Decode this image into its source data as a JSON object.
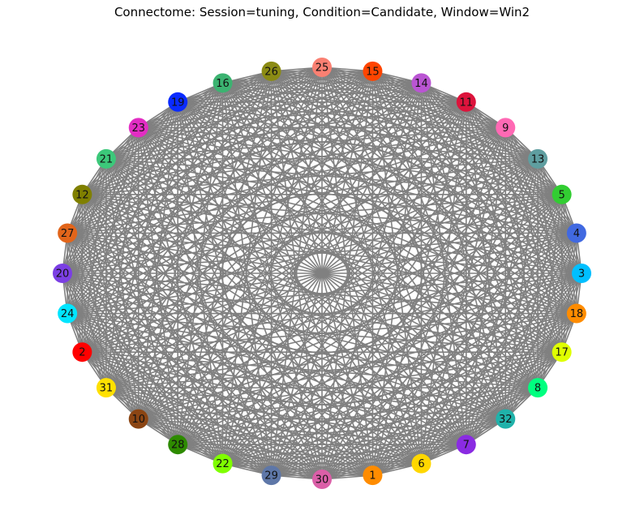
{
  "title": "Connectome: Session=tuning, Condition=Candidate, Window=Win2",
  "graph": {
    "edge_color": "#808080",
    "edges": "all-to-all",
    "nodes": [
      {
        "id": "25",
        "color": "#FA8072"
      },
      {
        "id": "15",
        "color": "#FF4500"
      },
      {
        "id": "14",
        "color": "#BA55D3"
      },
      {
        "id": "11",
        "color": "#DC143C"
      },
      {
        "id": "9",
        "color": "#FF69B4"
      },
      {
        "id": "13",
        "color": "#5F9EA0"
      },
      {
        "id": "5",
        "color": "#32CD32"
      },
      {
        "id": "4",
        "color": "#4169E1"
      },
      {
        "id": "3",
        "color": "#00BFFF"
      },
      {
        "id": "18",
        "color": "#FF8C00"
      },
      {
        "id": "17",
        "color": "#DFFF00"
      },
      {
        "id": "8",
        "color": "#00FF7F"
      },
      {
        "id": "32",
        "color": "#20B2AA"
      },
      {
        "id": "7",
        "color": "#8A2BE2"
      },
      {
        "id": "6",
        "color": "#FFD700"
      },
      {
        "id": "1",
        "color": "#FF8C00"
      },
      {
        "id": "30",
        "color": "#DB5FA8"
      },
      {
        "id": "29",
        "color": "#5E77A8"
      },
      {
        "id": "22",
        "color": "#7FFF00"
      },
      {
        "id": "28",
        "color": "#2E8B00"
      },
      {
        "id": "10",
        "color": "#8B4513"
      },
      {
        "id": "31",
        "color": "#FFE000"
      },
      {
        "id": "2",
        "color": "#FF0000"
      },
      {
        "id": "24",
        "color": "#00E5FF"
      },
      {
        "id": "20",
        "color": "#7B3FE4"
      },
      {
        "id": "27",
        "color": "#E2651A"
      },
      {
        "id": "12",
        "color": "#808000"
      },
      {
        "id": "21",
        "color": "#3CC87A"
      },
      {
        "id": "23",
        "color": "#E22DC3"
      },
      {
        "id": "19",
        "color": "#0A2BFF"
      },
      {
        "id": "16",
        "color": "#3CB371"
      },
      {
        "id": "26",
        "color": "#8B8B14"
      }
    ]
  }
}
